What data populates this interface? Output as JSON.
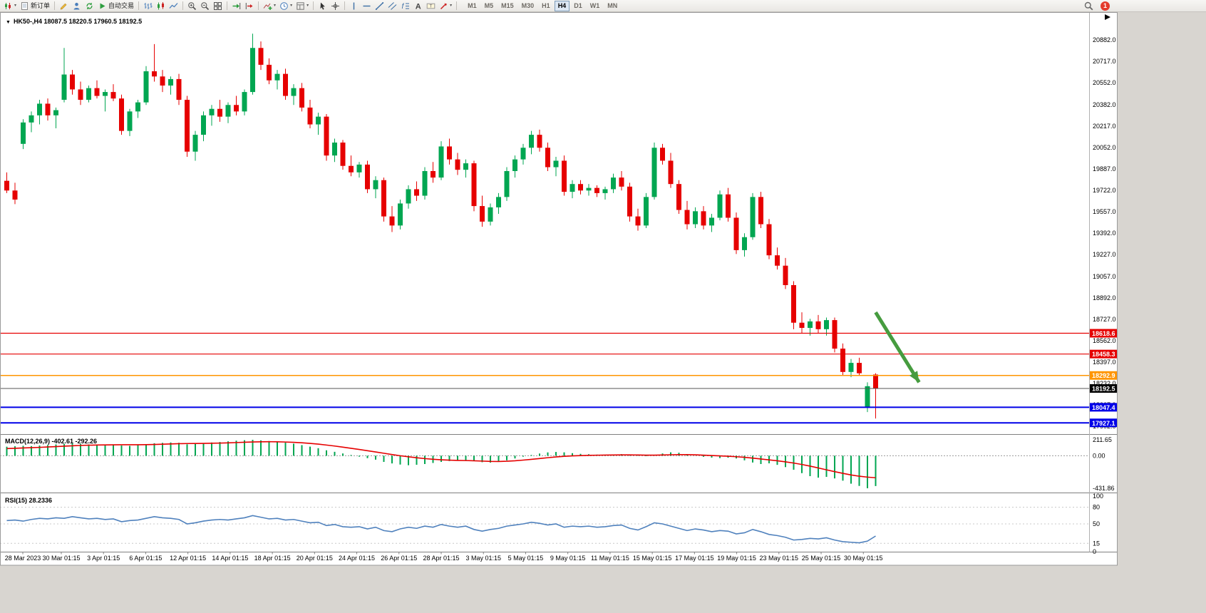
{
  "window": {
    "title_marker": "▼",
    "chart_title": "HK50-,H4 18087.5 18220.5 17960.5 18192.5",
    "symbol": "HK50-",
    "period": "H4"
  },
  "toolbar": {
    "items": [
      {
        "type": "btn",
        "name": "new-chart",
        "icon": "chart-new",
        "dropdown": true
      },
      {
        "type": "btn",
        "name": "new-order",
        "icon": "page",
        "label": "新订单"
      },
      {
        "type": "sep"
      },
      {
        "type": "btn",
        "name": "metaeditor",
        "icon": "pencil"
      },
      {
        "type": "btn",
        "name": "community",
        "icon": "person"
      },
      {
        "type": "btn",
        "name": "refresh",
        "icon": "refresh"
      },
      {
        "type": "btn",
        "name": "autotrading",
        "icon": "play",
        "label": "自动交易"
      },
      {
        "type": "sep"
      },
      {
        "type": "btn",
        "name": "bar-chart-mode",
        "icon": "bars"
      },
      {
        "type": "btn",
        "name": "candlestick-mode",
        "icon": "candles"
      },
      {
        "type": "btn",
        "name": "line-chart-mode",
        "icon": "linechart"
      },
      {
        "type": "sep"
      },
      {
        "type": "btn",
        "name": "zoom-in",
        "icon": "zoom-in"
      },
      {
        "type": "btn",
        "name": "zoom-out",
        "icon": "zoom-out"
      },
      {
        "type": "btn",
        "name": "tile-windows",
        "icon": "tile"
      },
      {
        "type": "sep"
      },
      {
        "type": "btn",
        "name": "auto-scroll",
        "icon": "autoscroll"
      },
      {
        "type": "btn",
        "name": "chart-shift",
        "icon": "chartshift"
      },
      {
        "type": "sep"
      },
      {
        "type": "btn",
        "name": "indicators",
        "icon": "indicators",
        "dropdown": true
      },
      {
        "type": "btn",
        "name": "periods",
        "icon": "clock",
        "dropdown": true
      },
      {
        "type": "btn",
        "name": "templates",
        "icon": "template",
        "dropdown": true
      },
      {
        "type": "sep"
      },
      {
        "type": "btn",
        "name": "cursor",
        "icon": "cursor"
      },
      {
        "type": "btn",
        "name": "crosshair",
        "icon": "crosshair"
      },
      {
        "type": "sep"
      },
      {
        "type": "btn",
        "name": "vertical-line",
        "icon": "vline"
      },
      {
        "type": "btn",
        "name": "horizontal-line",
        "icon": "hline"
      },
      {
        "type": "btn",
        "name": "trendline",
        "icon": "trendline"
      },
      {
        "type": "btn",
        "name": "equidistant-channel",
        "icon": "channel"
      },
      {
        "type": "btn",
        "name": "fibonacci-retracement",
        "icon": "fibo"
      },
      {
        "type": "btn",
        "name": "text",
        "icon": "text"
      },
      {
        "type": "btn",
        "name": "text-label",
        "icon": "label"
      },
      {
        "type": "btn",
        "name": "arrow-objects",
        "icon": "arrowobj",
        "dropdown": true
      },
      {
        "type": "sep"
      }
    ],
    "timeframes": [
      "M1",
      "M5",
      "M15",
      "M30",
      "H1",
      "H4",
      "D1",
      "W1",
      "MN"
    ],
    "active_timeframe": "H4",
    "notification_count": "1"
  },
  "chart_data": {
    "type": "candlestick",
    "symbol": "HK50-",
    "timeframe": "H4",
    "ohlc_display": {
      "open": "18087.5",
      "high": "18220.5",
      "low": "17960.5",
      "close": "18192.5"
    },
    "price_ticks": [
      20882.0,
      20717.0,
      20552.0,
      20382.0,
      20217.0,
      20052.0,
      19887.0,
      19722.0,
      19557.0,
      19392.0,
      19227.0,
      19057.0,
      18892.0,
      18727.0,
      18562.0,
      18397.0,
      18232.0,
      18067.0,
      17902.0
    ],
    "x_labels": [
      "28 Mar 2023",
      "30 Mar 01:15",
      "3 Apr 01:15",
      "6 Apr 01:15",
      "12 Apr 01:15",
      "14 Apr 01:15",
      "18 Apr 01:15",
      "20 Apr 01:15",
      "24 Apr 01:15",
      "26 Apr 01:15",
      "28 Apr 01:15",
      "3 May 01:15",
      "5 May 01:15",
      "9 May 01:15",
      "11 May 01:15",
      "15 May 01:15",
      "17 May 01:15",
      "19 May 01:15",
      "23 May 01:15",
      "25 May 01:15",
      "30 May 01:15"
    ],
    "colors": {
      "up": "#00a651",
      "down": "#e60000",
      "macd_hist": "#00a651",
      "macd_signal": "#e60000",
      "rsi_line": "#4f81bd"
    },
    "hlines": [
      {
        "price": 18618.6,
        "label": "18618.6",
        "color": "#e60000",
        "tag": "#e60000",
        "width": 1.2
      },
      {
        "price": 18458.3,
        "label": "18458.3",
        "color": "#e60000",
        "tag": "#e60000",
        "width": 1.2
      },
      {
        "price": 18292.9,
        "label": "18292.9",
        "color": "#ff9500",
        "tag": "#ff9500",
        "width": 1.6
      },
      {
        "price": 18192.5,
        "label": "18192.5",
        "color": "#555555",
        "tag": "#000000",
        "width": 1,
        "role": "current-price"
      },
      {
        "price": 18047.4,
        "label": "18047.4",
        "color": "#0000e8",
        "tag": "#0000e8",
        "width": 2
      },
      {
        "price": 17927.1,
        "label": "17927.1",
        "color": "#0000e8",
        "tag": "#0000e8",
        "width": 2
      }
    ],
    "arrow": {
      "from_index": 106,
      "from_price": 18780,
      "to_index": 111.3,
      "to_price": 18240,
      "color": "#469c3f"
    },
    "candles": [
      [
        19795,
        19860,
        19700,
        19720
      ],
      [
        19720,
        19780,
        19615,
        19650
      ],
      [
        20080,
        20270,
        20040,
        20245
      ],
      [
        20245,
        20330,
        20170,
        20300
      ],
      [
        20300,
        20420,
        20230,
        20390
      ],
      [
        20390,
        20430,
        20260,
        20300
      ],
      [
        20300,
        20360,
        20200,
        20340
      ],
      [
        20420,
        20820,
        20400,
        20615
      ],
      [
        20615,
        20650,
        20460,
        20500
      ],
      [
        20500,
        20560,
        20380,
        20420
      ],
      [
        20420,
        20530,
        20400,
        20510
      ],
      [
        20510,
        20570,
        20430,
        20450
      ],
      [
        20450,
        20500,
        20330,
        20480
      ],
      [
        20480,
        20540,
        20410,
        20430
      ],
      [
        20430,
        20460,
        20150,
        20180
      ],
      [
        20180,
        20350,
        20140,
        20330
      ],
      [
        20330,
        20420,
        20280,
        20400
      ],
      [
        20400,
        20680,
        20380,
        20640
      ],
      [
        20640,
        20850,
        20560,
        20600
      ],
      [
        20600,
        20650,
        20480,
        20530
      ],
      [
        20530,
        20600,
        20460,
        20580
      ],
      [
        20580,
        20620,
        20380,
        20420
      ],
      [
        20420,
        20450,
        19980,
        20020
      ],
      [
        20020,
        20180,
        19950,
        20150
      ],
      [
        20150,
        20330,
        20100,
        20300
      ],
      [
        20300,
        20380,
        20220,
        20350
      ],
      [
        20350,
        20420,
        20250,
        20290
      ],
      [
        20290,
        20400,
        20240,
        20380
      ],
      [
        20380,
        20450,
        20300,
        20330
      ],
      [
        20330,
        20500,
        20300,
        20480
      ],
      [
        20480,
        20930,
        20460,
        20820
      ],
      [
        20820,
        20870,
        20650,
        20690
      ],
      [
        20690,
        20740,
        20540,
        20570
      ],
      [
        20570,
        20650,
        20500,
        20620
      ],
      [
        20620,
        20660,
        20420,
        20450
      ],
      [
        20450,
        20540,
        20380,
        20510
      ],
      [
        20510,
        20550,
        20330,
        20360
      ],
      [
        20360,
        20420,
        20200,
        20230
      ],
      [
        20230,
        20320,
        20150,
        20290
      ],
      [
        20290,
        20310,
        19950,
        19990
      ],
      [
        19990,
        20120,
        19940,
        20090
      ],
      [
        20090,
        20110,
        19880,
        19910
      ],
      [
        19910,
        19990,
        19830,
        19860
      ],
      [
        19860,
        19940,
        19820,
        19920
      ],
      [
        19920,
        19950,
        19700,
        19730
      ],
      [
        19730,
        19830,
        19660,
        19800
      ],
      [
        19800,
        19820,
        19480,
        19520
      ],
      [
        19520,
        19600,
        19400,
        19450
      ],
      [
        19450,
        19650,
        19420,
        19620
      ],
      [
        19620,
        19760,
        19580,
        19730
      ],
      [
        19730,
        19790,
        19640,
        19680
      ],
      [
        19680,
        19900,
        19650,
        19870
      ],
      [
        19870,
        19940,
        19780,
        19820
      ],
      [
        19820,
        20100,
        19800,
        20060
      ],
      [
        20060,
        20120,
        19920,
        19960
      ],
      [
        19960,
        20010,
        19840,
        19880
      ],
      [
        19880,
        19960,
        19820,
        19930
      ],
      [
        19930,
        19950,
        19560,
        19600
      ],
      [
        19600,
        19680,
        19440,
        19480
      ],
      [
        19480,
        19620,
        19450,
        19590
      ],
      [
        19590,
        19700,
        19540,
        19670
      ],
      [
        19670,
        19900,
        19640,
        19870
      ],
      [
        19870,
        19990,
        19820,
        19960
      ],
      [
        19960,
        20080,
        19920,
        20050
      ],
      [
        20050,
        20180,
        20000,
        20150
      ],
      [
        20150,
        20190,
        20020,
        20050
      ],
      [
        20050,
        20090,
        19870,
        19900
      ],
      [
        19900,
        19980,
        19830,
        19950
      ],
      [
        19950,
        19990,
        19680,
        19710
      ],
      [
        19710,
        19800,
        19660,
        19770
      ],
      [
        19770,
        19800,
        19690,
        19720
      ],
      [
        19720,
        19770,
        19680,
        19740
      ],
      [
        19740,
        19760,
        19670,
        19700
      ],
      [
        19700,
        19750,
        19650,
        19730
      ],
      [
        19730,
        19850,
        19700,
        19820
      ],
      [
        19820,
        19870,
        19720,
        19750
      ],
      [
        19750,
        19780,
        19480,
        19520
      ],
      [
        19520,
        19580,
        19410,
        19450
      ],
      [
        19450,
        19700,
        19430,
        19670
      ],
      [
        19670,
        20090,
        19650,
        20050
      ],
      [
        20050,
        20080,
        19920,
        19950
      ],
      [
        19950,
        20010,
        19740,
        19770
      ],
      [
        19770,
        19800,
        19540,
        19570
      ],
      [
        19570,
        19640,
        19420,
        19460
      ],
      [
        19460,
        19590,
        19430,
        19560
      ],
      [
        19560,
        19600,
        19420,
        19450
      ],
      [
        19450,
        19540,
        19400,
        19510
      ],
      [
        19510,
        19720,
        19490,
        19690
      ],
      [
        19690,
        19740,
        19480,
        19510
      ],
      [
        19510,
        19550,
        19230,
        19260
      ],
      [
        19260,
        19390,
        19210,
        19360
      ],
      [
        19360,
        19700,
        19340,
        19670
      ],
      [
        19670,
        19710,
        19430,
        19460
      ],
      [
        19460,
        19500,
        19190,
        19220
      ],
      [
        19220,
        19280,
        19110,
        19140
      ],
      [
        19140,
        19200,
        18960,
        18990
      ],
      [
        18990,
        19020,
        18650,
        18700
      ],
      [
        18700,
        18780,
        18620,
        18660
      ],
      [
        18660,
        18730,
        18600,
        18710
      ],
      [
        18710,
        18760,
        18620,
        18650
      ],
      [
        18650,
        18740,
        18600,
        18720
      ],
      [
        18720,
        18740,
        18470,
        18500
      ],
      [
        18500,
        18540,
        18290,
        18320
      ],
      [
        18320,
        18420,
        18280,
        18390
      ],
      [
        18390,
        18430,
        18290,
        18310
      ],
      [
        18050,
        18240,
        18010,
        18210
      ],
      [
        18300,
        18310,
        17960.5,
        18192.5
      ]
    ],
    "macd": {
      "label": "MACD(12,26,9) -402.61 -292.26",
      "value": -402.61,
      "signal_value": -292.26,
      "ticks": [
        "211.65",
        "0.00",
        "-431.86"
      ],
      "max": 211.65,
      "min": -431.86,
      "histogram": [
        120,
        126,
        132,
        128,
        136,
        142,
        150,
        156,
        162,
        157,
        150,
        146,
        141,
        151,
        136,
        131,
        142,
        152,
        166,
        171,
        176,
        172,
        152,
        157,
        166,
        176,
        182,
        191,
        200,
        206,
        211.7,
        204,
        195,
        186,
        174,
        160,
        141,
        121,
        100,
        72,
        52,
        30,
        10,
        -12,
        -32,
        -52,
        -82,
        -102,
        -117,
        -126,
        -120,
        -110,
        -96,
        -82,
        -71,
        -66,
        -61,
        -72,
        -86,
        -91,
        -80,
        -61,
        -36,
        -12,
        10,
        29,
        44,
        50,
        45,
        34,
        25,
        20,
        15,
        10,
        16,
        21,
        14,
        5,
        -6,
        12,
        30,
        45,
        40,
        21,
        1,
        -14,
        -25,
        -31,
        -26,
        -36,
        -61,
        -90,
        -110,
        -101,
        -121,
        -151,
        -186,
        -231,
        -271,
        -291,
        -281,
        -301,
        -331,
        -371,
        -401,
        -431.9,
        -402.6
      ],
      "signal": [
        95,
        99,
        103,
        107,
        111,
        116,
        121,
        127,
        132,
        137,
        140,
        142,
        144,
        145,
        146,
        146,
        146,
        147,
        150,
        153,
        157,
        160,
        162,
        163,
        164,
        166,
        168,
        171,
        175,
        179,
        183,
        185,
        186,
        185,
        182,
        178,
        172,
        164,
        154,
        142,
        129,
        114,
        99,
        83,
        67,
        50,
        33,
        16,
        0,
        -14,
        -27,
        -38,
        -47,
        -54,
        -59,
        -62,
        -64,
        -67,
        -71,
        -75,
        -76,
        -73,
        -67,
        -58,
        -48,
        -37,
        -26,
        -16,
        -8,
        -2,
        2,
        5,
        7,
        9,
        10,
        11,
        11,
        10,
        8,
        8,
        10,
        13,
        15,
        15,
        12,
        8,
        3,
        -2,
        -7,
        -13,
        -21,
        -31,
        -43,
        -55,
        -67,
        -81,
        -97,
        -116,
        -138,
        -162,
        -187,
        -211,
        -234,
        -255,
        -272,
        -284,
        -292.3
      ]
    },
    "rsi": {
      "label": "RSI(15) 28.2336",
      "value": 28.2336,
      "ticks": [
        "100",
        "80",
        "50",
        "15",
        "0"
      ],
      "levels": [
        80,
        50,
        15
      ],
      "values": [
        56,
        57,
        55,
        58,
        60,
        59,
        61,
        60,
        63,
        61,
        59,
        60,
        58,
        59,
        54,
        56,
        57,
        60,
        63,
        61,
        60,
        58,
        50,
        52,
        55,
        57,
        58,
        57,
        59,
        61,
        65,
        62,
        59,
        60,
        57,
        58,
        55,
        52,
        53,
        47,
        49,
        45,
        44,
        45,
        41,
        44,
        38,
        36,
        41,
        44,
        42,
        46,
        44,
        49,
        46,
        44,
        46,
        40,
        37,
        40,
        42,
        46,
        48,
        50,
        53,
        51,
        48,
        50,
        44,
        46,
        45,
        46,
        44,
        45,
        47,
        48,
        42,
        39,
        45,
        52,
        50,
        46,
        42,
        38,
        41,
        39,
        36,
        38,
        37,
        32,
        34,
        40,
        36,
        31,
        29,
        26,
        21,
        22,
        24,
        23,
        25,
        21,
        18,
        17,
        16,
        19,
        28.2
      ]
    }
  }
}
